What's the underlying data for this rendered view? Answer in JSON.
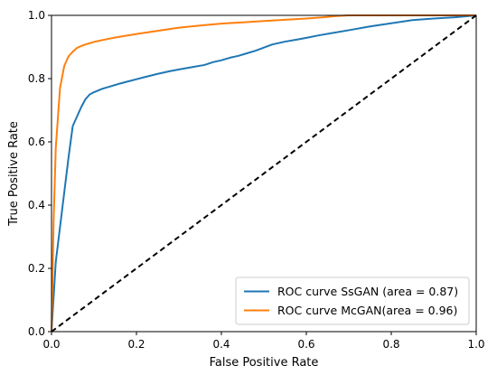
{
  "chart_data": {
    "type": "line",
    "xlabel": "False Positive Rate",
    "ylabel": "True Positive Rate",
    "xlim": [
      0.0,
      1.0
    ],
    "ylim": [
      0.0,
      1.0
    ],
    "xticks": [
      "0.0",
      "0.2",
      "0.4",
      "0.6",
      "0.8",
      "1.0"
    ],
    "yticks": [
      "0.0",
      "0.2",
      "0.4",
      "0.6",
      "0.8",
      "1.0"
    ],
    "grid": false,
    "legend_position": "bottom-right",
    "series": [
      {
        "name": "ROC curve SsGAN (area = 0.87)",
        "color": "#1f77b4",
        "x": [
          0,
          0.01,
          0.02,
          0.03,
          0.04,
          0.05,
          0.06,
          0.07,
          0.08,
          0.09,
          0.1,
          0.12,
          0.14,
          0.16,
          0.18,
          0.2,
          0.22,
          0.25,
          0.28,
          0.3,
          0.33,
          0.36,
          0.38,
          0.4,
          0.42,
          0.44,
          0.46,
          0.48,
          0.5,
          0.52,
          0.55,
          0.58,
          0.6,
          0.63,
          0.66,
          0.7,
          0.75,
          0.8,
          0.85,
          0.9,
          0.95,
          1.0
        ],
        "y": [
          0,
          0.22,
          0.33,
          0.44,
          0.55,
          0.65,
          0.68,
          0.71,
          0.735,
          0.75,
          0.757,
          0.768,
          0.776,
          0.784,
          0.791,
          0.798,
          0.805,
          0.815,
          0.824,
          0.829,
          0.836,
          0.843,
          0.852,
          0.858,
          0.866,
          0.872,
          0.88,
          0.888,
          0.898,
          0.908,
          0.917,
          0.924,
          0.929,
          0.937,
          0.944,
          0.953,
          0.965,
          0.975,
          0.985,
          0.99,
          0.994,
          1.0
        ]
      },
      {
        "name": "ROC curve McGAN(area = 0.96)",
        "color": "#ff7f0e",
        "x": [
          0,
          0.005,
          0.01,
          0.02,
          0.03,
          0.04,
          0.05,
          0.06,
          0.07,
          0.08,
          0.1,
          0.12,
          0.15,
          0.2,
          0.25,
          0.3,
          0.35,
          0.4,
          0.45,
          0.5,
          0.55,
          0.6,
          0.64,
          0.67,
          0.7,
          1.0
        ],
        "y": [
          0,
          0.35,
          0.58,
          0.77,
          0.84,
          0.87,
          0.885,
          0.897,
          0.903,
          0.908,
          0.916,
          0.922,
          0.93,
          0.941,
          0.951,
          0.961,
          0.968,
          0.974,
          0.978,
          0.982,
          0.986,
          0.99,
          0.994,
          0.998,
          1.0,
          1.0
        ]
      },
      {
        "name": "",
        "color": "#000000",
        "dashed": true,
        "x": [
          0,
          1
        ],
        "y": [
          0,
          1
        ]
      }
    ]
  }
}
